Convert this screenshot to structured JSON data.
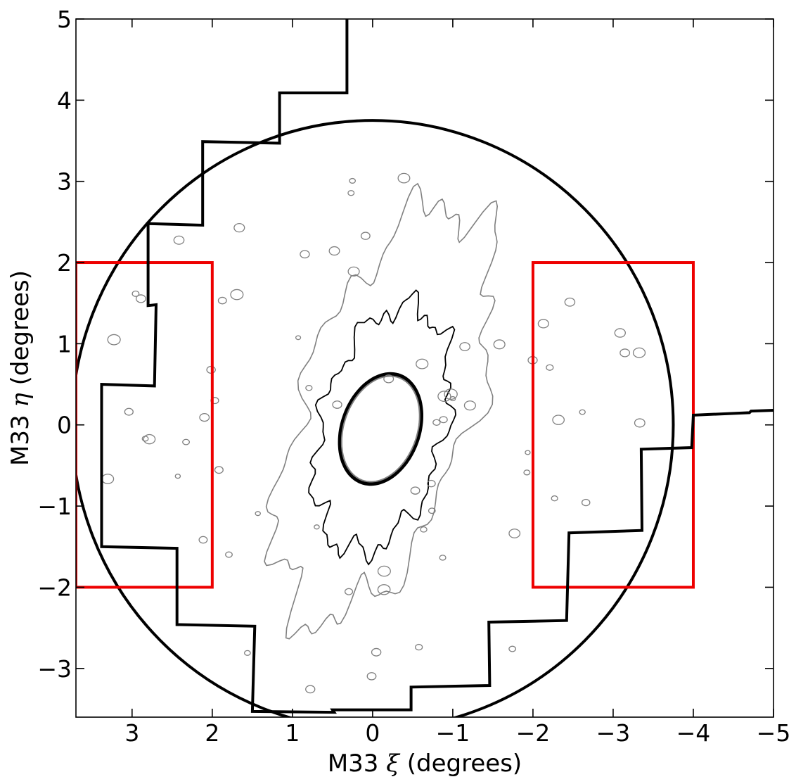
{
  "chart_data": {
    "type": "line",
    "title": "",
    "xlabel_prefix": "M33",
    "xlabel_symbol": "ξ",
    "xlabel_suffix": "(degrees)",
    "ylabel_prefix": "M33",
    "ylabel_symbol": "η",
    "ylabel_suffix": "(degrees)",
    "xlim": [
      3.7,
      -5.0
    ],
    "ylim": [
      -3.6,
      5.0
    ],
    "x_ticks": [
      3,
      2,
      1,
      0,
      -1,
      -2,
      -3,
      -4,
      -5
    ],
    "x_tick_labels": [
      "3",
      "2",
      "1",
      "0",
      "−1",
      "−2",
      "−3",
      "−4",
      "−5"
    ],
    "y_ticks": [
      -3,
      -2,
      -1,
      0,
      1,
      2,
      3,
      4,
      5
    ],
    "y_tick_labels": [
      "−3",
      "−2",
      "−1",
      "0",
      "1",
      "2",
      "3",
      "4",
      "5"
    ],
    "grid": false,
    "colors": {
      "footprint": "#000000",
      "circle": "#000000",
      "fields": "#ee0000",
      "contour_inner": "#000000",
      "contour_outer": "#808080"
    },
    "series": [
      {
        "role": "footprint-left",
        "points": [
          [
            0.32,
            5.0
          ],
          [
            0.32,
            4.09
          ],
          [
            1.16,
            4.09
          ],
          [
            1.16,
            3.47
          ],
          [
            2.12,
            3.49
          ],
          [
            2.12,
            2.46
          ],
          [
            2.8,
            2.48
          ],
          [
            2.8,
            1.47
          ],
          [
            2.7,
            1.48
          ],
          [
            2.72,
            0.48
          ],
          [
            3.38,
            0.5
          ],
          [
            3.38,
            -1.5
          ],
          [
            2.44,
            -1.52
          ],
          [
            2.44,
            -2.46
          ],
          [
            1.47,
            -2.48
          ],
          [
            1.5,
            -3.53
          ],
          [
            0.48,
            -3.54
          ],
          [
            0.5,
            -3.51
          ],
          [
            -0.48,
            -3.51
          ],
          [
            -0.48,
            -3.23
          ],
          [
            -1.46,
            -3.21
          ],
          [
            -1.45,
            -2.43
          ],
          [
            -2.42,
            -2.41
          ],
          [
            -2.45,
            -1.33
          ],
          [
            -3.36,
            -1.3
          ],
          [
            -3.35,
            -0.3
          ],
          [
            -3.98,
            -0.28
          ],
          [
            -4.0,
            0.12
          ],
          [
            -4.7,
            0.15
          ],
          [
            -4.72,
            0.17
          ],
          [
            -5.0,
            0.18
          ]
        ]
      },
      {
        "role": "survey-circle",
        "center": [
          0,
          0
        ],
        "radius": 3.75
      },
      {
        "role": "field-east",
        "x": [
          2.0,
          3.7
        ],
        "y": [
          -2.0,
          2.0
        ]
      },
      {
        "role": "field-west",
        "x": [
          -2.0,
          -4.0
        ],
        "y": [
          -2.0,
          2.0
        ]
      },
      {
        "role": "contour-core",
        "center": [
          -0.1,
          -0.05
        ],
        "semi_major": 0.7,
        "semi_minor": 0.48,
        "angle_deg": -20
      },
      {
        "role": "contour-mid",
        "center": [
          -0.12,
          -0.05
        ],
        "semi_major": 1.55,
        "semi_minor": 0.77,
        "angle_deg": -15
      },
      {
        "role": "contour-outer",
        "center": [
          -0.15,
          0.15
        ],
        "semi_major": 2.7,
        "semi_minor": 1.05,
        "angle_deg": -20
      }
    ]
  }
}
